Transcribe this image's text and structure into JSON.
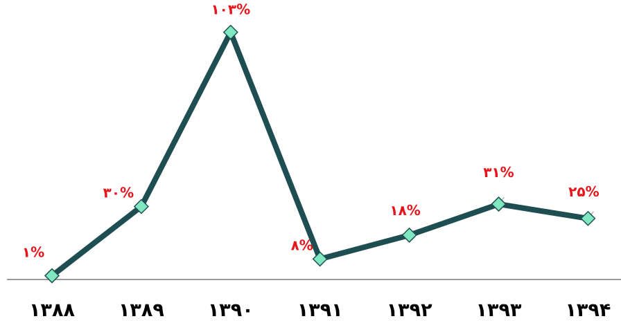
{
  "chart_data": {
    "type": "line",
    "categories": [
      "۱۳۸۸",
      "۱۳۸۹",
      "۱۳۹۰",
      "۱۳۹۱",
      "۱۳۹۲",
      "۱۳۹۳",
      "۱۳۹۴"
    ],
    "series": [
      {
        "values": [
          1,
          30,
          103,
          8,
          18,
          31,
          25
        ],
        "data_labels": [
          "۱%",
          "۳۰%",
          "۱۰۳%",
          "۸%",
          "۱۸%",
          "۳۱%",
          "۲۵%"
        ]
      }
    ],
    "title": "",
    "xlabel": "",
    "ylabel": "",
    "y_axis_visible": false,
    "grid": false,
    "line_color": "#1f4e52",
    "marker": "diamond",
    "marker_color": "#7fe8c0",
    "label_color": "#e8141b",
    "axis_color": "#9a9a9a"
  }
}
